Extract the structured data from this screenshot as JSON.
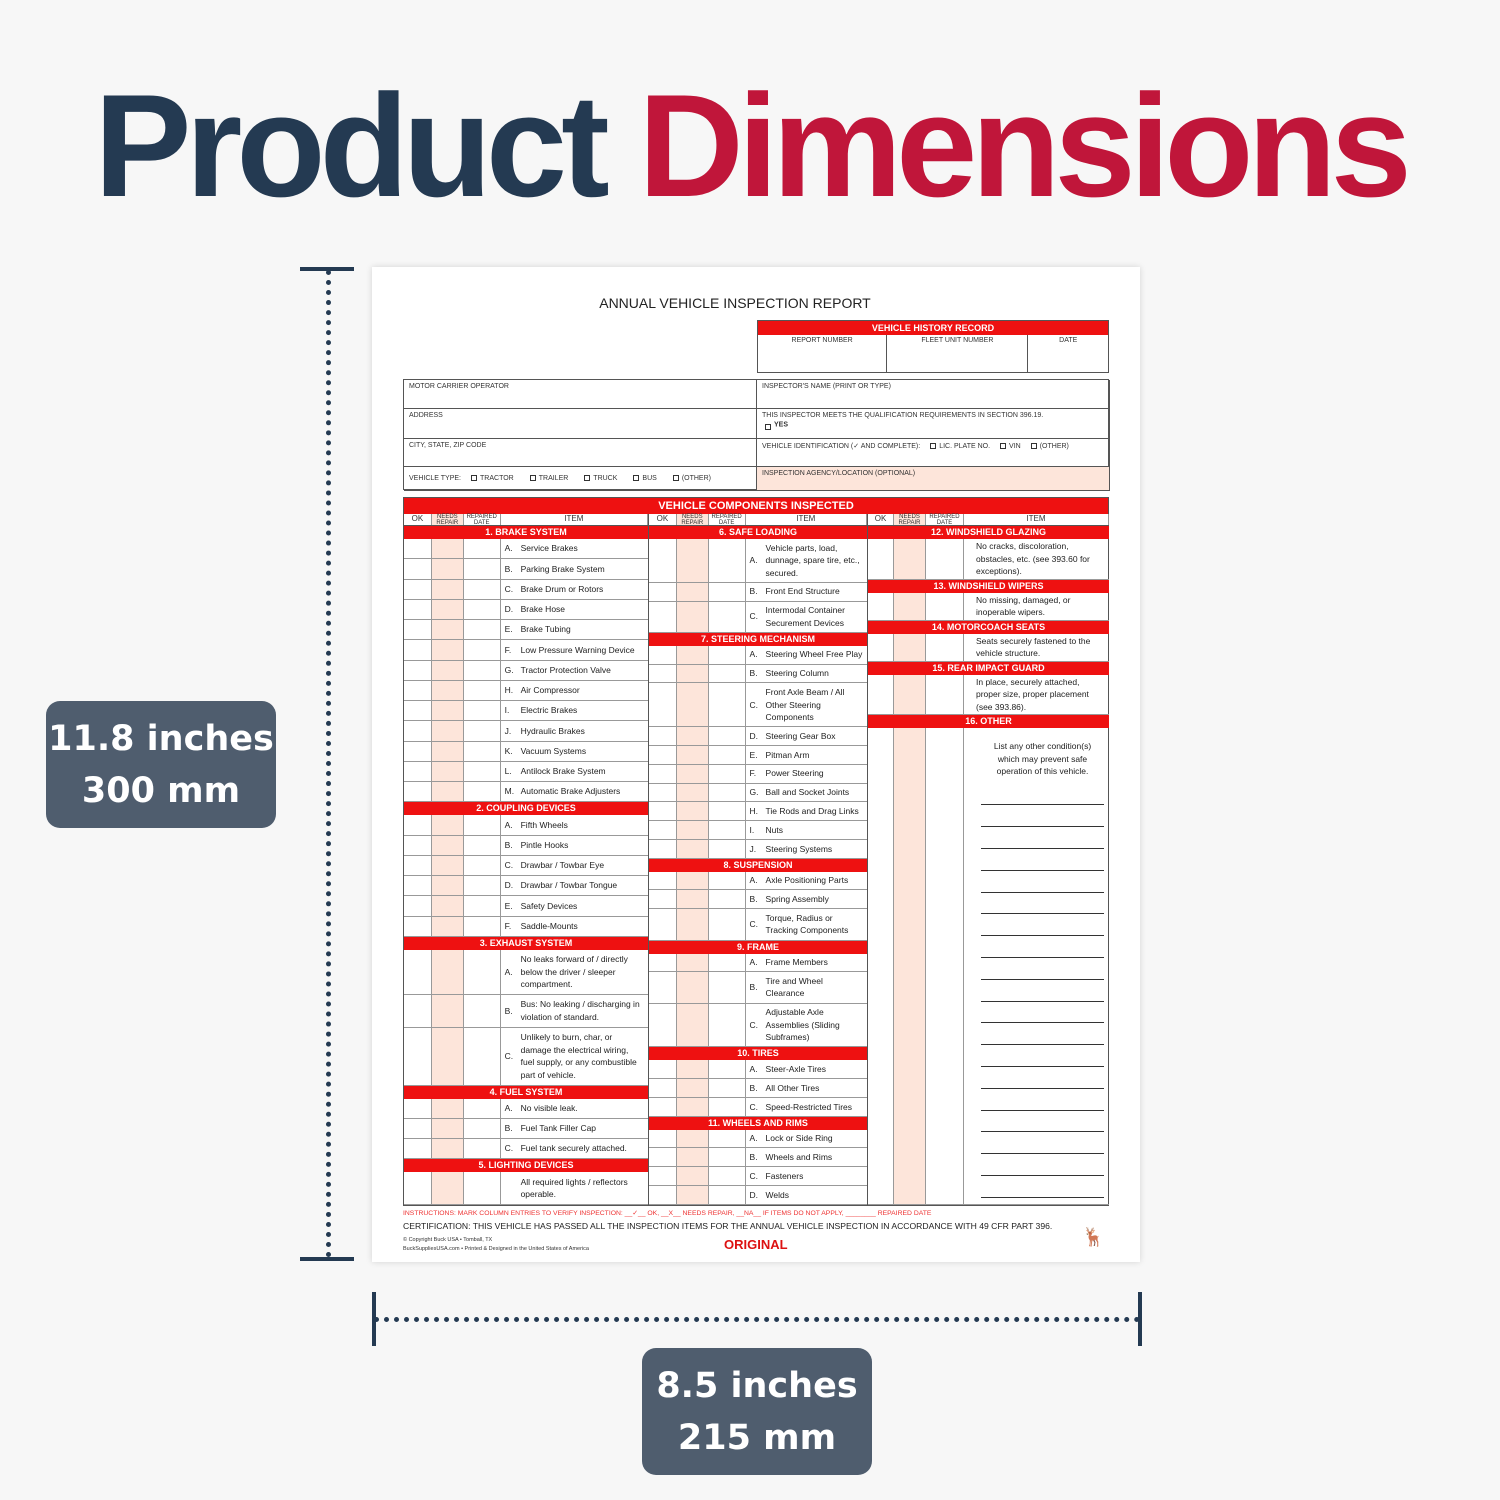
{
  "headline": {
    "word1": "Product",
    "word2": "Dimensions"
  },
  "height_badge": {
    "inches": "11.8 inches",
    "mm": "300 mm"
  },
  "width_badge": {
    "inches": "8.5 inches",
    "mm": "215 mm"
  },
  "colors": {
    "navy": "#243a52",
    "crimson": "#c0163a",
    "form_red": "#ee1111",
    "badge": "#4f5d6e"
  },
  "form": {
    "title": "ANNUAL VEHICLE INSPECTION REPORT",
    "history": {
      "title": "VEHICLE HISTORY RECORD",
      "cols": [
        "REPORT NUMBER",
        "FLEET UNIT NUMBER",
        "DATE"
      ]
    },
    "info": {
      "motor_carrier": "MOTOR CARRIER OPERATOR",
      "inspector_name": "INSPECTOR'S NAME (PRINT OR TYPE)",
      "address": "ADDRESS",
      "qualification": "THIS INSPECTOR MEETS THE QUALIFICATION REQUIREMENTS IN SECTION 396.19.",
      "yes": "YES",
      "city": "CITY, STATE, ZIP CODE",
      "vehicle_id": "VEHICLE IDENTIFICATION (✓ AND COMPLETE):",
      "vid_options": [
        "LIC. PLATE NO.",
        "VIN",
        "(OTHER)"
      ],
      "vehicle_type": "VEHICLE TYPE:",
      "vtype_options": [
        "TRACTOR",
        "TRAILER",
        "TRUCK",
        "BUS",
        "(OTHER)"
      ],
      "agency": "INSPECTION AGENCY/LOCATION (OPTIONAL)"
    },
    "table_title": "VEHICLE COMPONENTS INSPECTED",
    "col_headers": {
      "ok": "OK",
      "needs_repair": "NEEDS REPAIR",
      "repaired_date": "REPAIRED DATE",
      "item": "ITEM"
    },
    "columns": [
      [
        {
          "title": "1. BRAKE SYSTEM",
          "items": [
            [
              "A.",
              "Service Brakes"
            ],
            [
              "B.",
              "Parking Brake System"
            ],
            [
              "C.",
              "Brake Drum or Rotors"
            ],
            [
              "D.",
              "Brake Hose"
            ],
            [
              "E.",
              "Brake Tubing"
            ],
            [
              "F.",
              "Low Pressure Warning Device"
            ],
            [
              "G.",
              "Tractor Protection Valve"
            ],
            [
              "H.",
              "Air Compressor"
            ],
            [
              "I.",
              "Electric Brakes"
            ],
            [
              "J.",
              "Hydraulic Brakes"
            ],
            [
              "K.",
              "Vacuum Systems"
            ],
            [
              "L.",
              "Antilock Brake System"
            ],
            [
              "M.",
              "Automatic Brake Adjusters"
            ]
          ]
        },
        {
          "title": "2. COUPLING DEVICES",
          "items": [
            [
              "A.",
              "Fifth Wheels"
            ],
            [
              "B.",
              "Pintle Hooks"
            ],
            [
              "C.",
              "Drawbar / Towbar Eye"
            ],
            [
              "D.",
              "Drawbar / Towbar Tongue"
            ],
            [
              "E.",
              "Safety Devices"
            ],
            [
              "F.",
              "Saddle-Mounts"
            ]
          ]
        },
        {
          "title": "3. EXHAUST SYSTEM",
          "items": [
            [
              "A.",
              "No leaks forward of / directly below the driver / sleeper compartment."
            ],
            [
              "B.",
              "Bus: No leaking / discharging in violation of standard."
            ],
            [
              "C.",
              "Unlikely to burn, char, or damage the electrical wiring, fuel supply, or any combustible part of vehicle."
            ]
          ]
        },
        {
          "title": "4. FUEL SYSTEM",
          "items": [
            [
              "A.",
              "No visible leak."
            ],
            [
              "B.",
              "Fuel Tank Filler Cap"
            ],
            [
              "C.",
              "Fuel tank securely attached."
            ]
          ]
        },
        {
          "title": "5. LIGHTING DEVICES",
          "items": [
            [
              "",
              "All required lights / reflectors operable."
            ]
          ]
        }
      ],
      [
        {
          "title": "6. SAFE LOADING",
          "items": [
            [
              "A.",
              "Vehicle parts, load, dunnage, spare tire, etc., secured."
            ],
            [
              "B.",
              "Front End Structure"
            ],
            [
              "C.",
              "Intermodal Container Securement Devices"
            ]
          ]
        },
        {
          "title": "7. STEERING MECHANISM",
          "items": [
            [
              "A.",
              "Steering Wheel Free Play"
            ],
            [
              "B.",
              "Steering Column"
            ],
            [
              "C.",
              "Front Axle Beam / All Other Steering Components"
            ],
            [
              "D.",
              "Steering Gear Box"
            ],
            [
              "E.",
              "Pitman Arm"
            ],
            [
              "F.",
              "Power Steering"
            ],
            [
              "G.",
              "Ball and Socket Joints"
            ],
            [
              "H.",
              "Tie Rods and Drag Links"
            ],
            [
              "I.",
              "Nuts"
            ],
            [
              "J.",
              "Steering Systems"
            ]
          ]
        },
        {
          "title": "8. SUSPENSION",
          "items": [
            [
              "A.",
              "Axle Positioning Parts"
            ],
            [
              "B.",
              "Spring Assembly"
            ],
            [
              "C.",
              "Torque, Radius or Tracking Components"
            ]
          ]
        },
        {
          "title": "9. FRAME",
          "items": [
            [
              "A.",
              "Frame Members"
            ],
            [
              "B.",
              "Tire and Wheel Clearance"
            ],
            [
              "C.",
              "Adjustable Axle Assemblies (Sliding Subframes)"
            ]
          ]
        },
        {
          "title": "10. TIRES",
          "items": [
            [
              "A.",
              "Steer-Axle Tires"
            ],
            [
              "B.",
              "All Other Tires"
            ],
            [
              "C.",
              "Speed-Restricted Tires"
            ]
          ]
        },
        {
          "title": "11. WHEELS AND RIMS",
          "items": [
            [
              "A.",
              "Lock or Side Ring"
            ],
            [
              "B.",
              "Wheels and Rims"
            ],
            [
              "C.",
              "Fasteners"
            ],
            [
              "D.",
              "Welds"
            ]
          ]
        }
      ],
      [
        {
          "title": "12. WINDSHIELD GLAZING",
          "items": [
            [
              "",
              "No cracks, discoloration, obstacles, etc. (see 393.60 for exceptions)."
            ]
          ]
        },
        {
          "title": "13. WINDSHIELD WIPERS",
          "items": [
            [
              "",
              "No missing, damaged, or inoperable wipers."
            ]
          ]
        },
        {
          "title": "14. MOTORCOACH SEATS",
          "items": [
            [
              "",
              "Seats securely fastened to the vehicle structure."
            ]
          ]
        },
        {
          "title": "15. REAR IMPACT GUARD",
          "items": [
            [
              "",
              "In place, securely attached, proper size, proper placement (see 393.86)."
            ]
          ]
        },
        {
          "title": "16. OTHER",
          "items": [
            [
              "",
              "List any other condition(s) which may prevent safe operation of this vehicle."
            ]
          ]
        }
      ]
    ],
    "instructions": "INSTRUCTIONS: MARK COLUMN ENTRIES TO VERIFY INSPECTION: __✓__ OK, __X__ NEEDS REPAIR, __NA__ IF ITEMS DO NOT APPLY, ________ REPAIRED DATE",
    "certification": "CERTIFICATION: THIS VEHICLE HAS PASSED ALL THE INSPECTION ITEMS FOR THE ANNUAL VEHICLE INSPECTION IN ACCORDANCE WITH 49 CFR PART 396.",
    "copyright": "© Copyright Buck USA • Tomball, TX",
    "website": "BuckSuppliesUSA.com • Printed & Designed in the United States of America",
    "copy_label": "ORIGINAL",
    "logo_text": "BUCK SUPPLIES"
  }
}
